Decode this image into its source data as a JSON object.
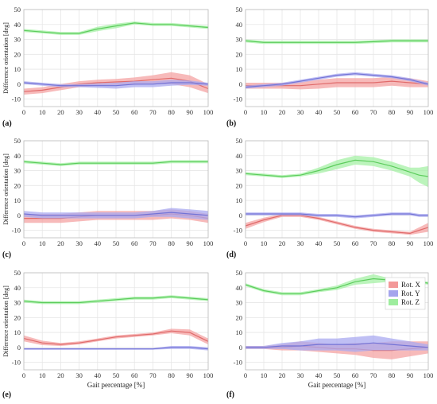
{
  "figure": {
    "legend": [
      {
        "label": "Rot. X",
        "color": "#f08080"
      },
      {
        "label": "Rot. Y",
        "color": "#8f8fe8"
      },
      {
        "label": "Rot. Z",
        "color": "#86e886"
      }
    ],
    "colors": {
      "line_x": "#e06a6a",
      "line_y": "#7373d6",
      "line_z": "#5ccc5c",
      "band_x": "#f4a3a3",
      "band_y": "#a9a9f0",
      "band_z": "#a6f0a6"
    }
  },
  "chart_data": [
    {
      "label": "(a)",
      "type": "line",
      "legend": false,
      "ylabel": "Difference orientation [deg]",
      "xlabel": "",
      "xlim": [
        0,
        100
      ],
      "ylim": [
        -15,
        50
      ],
      "xticks": [
        0,
        10,
        20,
        30,
        40,
        50,
        60,
        70,
        80,
        90,
        100
      ],
      "yticks": [
        -10,
        0,
        10,
        20,
        30,
        40,
        50
      ],
      "grid": true,
      "x": [
        0,
        10,
        20,
        30,
        40,
        50,
        60,
        70,
        80,
        90,
        100
      ],
      "series": [
        {
          "name": "Rot. X",
          "mean": [
            -5,
            -4,
            -2,
            0,
            1,
            1.5,
            2,
            3,
            4,
            2,
            -3
          ],
          "sd": [
            2,
            2,
            2,
            2,
            2,
            2,
            2.5,
            3,
            4,
            4,
            3
          ]
        },
        {
          "name": "Rot. Y",
          "mean": [
            1,
            0,
            -1,
            -1,
            -1,
            -1,
            0,
            0,
            1,
            1,
            0
          ],
          "sd": [
            1,
            1,
            1,
            1,
            1.5,
            2,
            2,
            2,
            2,
            1.5,
            1
          ]
        },
        {
          "name": "Rot. Z",
          "mean": [
            36,
            35,
            34,
            34,
            37,
            39,
            41,
            40,
            40,
            39,
            38
          ],
          "sd": [
            1,
            1,
            1,
            1,
            1.5,
            1.5,
            1,
            1,
            1,
            1,
            1
          ]
        }
      ]
    },
    {
      "label": "(b)",
      "type": "line",
      "legend": false,
      "ylabel": "",
      "xlabel": "",
      "xlim": [
        0,
        100
      ],
      "ylim": [
        -15,
        50
      ],
      "xticks": [
        0,
        10,
        20,
        30,
        40,
        50,
        60,
        70,
        80,
        90,
        100
      ],
      "yticks": [
        -10,
        0,
        10,
        20,
        30,
        40,
        50
      ],
      "grid": true,
      "x": [
        0,
        10,
        20,
        30,
        40,
        50,
        60,
        70,
        80,
        90,
        100
      ],
      "series": [
        {
          "name": "Rot. X",
          "mean": [
            -1,
            -1,
            -1,
            -1,
            0,
            1,
            1,
            1,
            2,
            1,
            0
          ],
          "sd": [
            2,
            2,
            2,
            2.5,
            3,
            3,
            3,
            3,
            3,
            3,
            2
          ]
        },
        {
          "name": "Rot. Y",
          "mean": [
            -2,
            -1,
            0,
            2,
            4,
            6,
            7,
            6,
            5,
            3,
            0
          ],
          "sd": [
            1,
            1,
            1,
            1,
            1,
            1,
            1,
            1,
            1,
            1,
            1
          ]
        },
        {
          "name": "Rot. Z",
          "mean": [
            29,
            28,
            28,
            28,
            28,
            28,
            28,
            28.5,
            29,
            29,
            29
          ],
          "sd": [
            1,
            1,
            1,
            1,
            1,
            1,
            1,
            1,
            1,
            1,
            1
          ]
        }
      ]
    },
    {
      "label": "(c)",
      "type": "line",
      "legend": false,
      "ylabel": "Difference orientation [deg]",
      "xlabel": "",
      "xlim": [
        0,
        100
      ],
      "ylim": [
        -15,
        50
      ],
      "xticks": [
        0,
        10,
        20,
        30,
        40,
        50,
        60,
        70,
        80,
        90,
        100
      ],
      "yticks": [
        -10,
        0,
        10,
        20,
        30,
        40,
        50
      ],
      "grid": true,
      "x": [
        0,
        10,
        20,
        30,
        40,
        50,
        60,
        70,
        80,
        90,
        100
      ],
      "series": [
        {
          "name": "Rot. X",
          "mean": [
            -2,
            -2,
            -2,
            -1,
            0,
            0,
            0,
            0,
            1,
            0,
            -2
          ],
          "sd": [
            3,
            3,
            3,
            3,
            3,
            3,
            3,
            3,
            3,
            3,
            3
          ]
        },
        {
          "name": "Rot. Y",
          "mean": [
            1,
            0,
            0,
            0,
            0,
            0,
            0,
            1,
            2,
            1,
            0
          ],
          "sd": [
            2,
            2,
            2,
            2,
            2,
            2,
            2,
            2,
            3,
            3,
            3
          ]
        },
        {
          "name": "Rot. Z",
          "mean": [
            36,
            35,
            34,
            35,
            35,
            35,
            35,
            35,
            36,
            36,
            36
          ],
          "sd": [
            1,
            1,
            1,
            1,
            1,
            1,
            1,
            1,
            1,
            1,
            1
          ]
        }
      ]
    },
    {
      "label": "(d)",
      "type": "line",
      "legend": false,
      "ylabel": "",
      "xlabel": "",
      "xlim": [
        0,
        100
      ],
      "ylim": [
        -15,
        50
      ],
      "xticks": [
        0,
        10,
        20,
        30,
        40,
        50,
        60,
        70,
        80,
        90,
        100
      ],
      "yticks": [
        -10,
        0,
        10,
        20,
        30,
        40,
        50
      ],
      "grid": true,
      "x": [
        0,
        10,
        20,
        30,
        40,
        50,
        60,
        70,
        80,
        90,
        95,
        100
      ],
      "series": [
        {
          "name": "Rot. X",
          "mean": [
            -7,
            -3,
            0,
            0,
            -2,
            -5,
            -8,
            -10,
            -11,
            -12,
            -10,
            -8
          ],
          "sd": [
            2,
            1.5,
            1,
            1,
            1,
            1,
            1,
            1,
            1,
            1,
            2,
            3
          ]
        },
        {
          "name": "Rot. Y",
          "mean": [
            1,
            1,
            1,
            1,
            0,
            0,
            -1,
            0,
            1,
            1,
            0,
            0
          ],
          "sd": [
            1,
            1,
            1,
            1,
            1,
            1,
            1,
            1,
            1,
            1,
            1,
            1
          ]
        },
        {
          "name": "Rot. Z",
          "mean": [
            28,
            27,
            26,
            27,
            30,
            34,
            37,
            36,
            33,
            29,
            27,
            26
          ],
          "sd": [
            1,
            1,
            1,
            1,
            2,
            3,
            3,
            3,
            3,
            3,
            5,
            7
          ]
        }
      ]
    },
    {
      "label": "(e)",
      "type": "line",
      "legend": false,
      "ylabel": "Difference orientation [deg]",
      "xlabel": "Gait percentage [%]",
      "xlim": [
        0,
        100
      ],
      "ylim": [
        -15,
        50
      ],
      "xticks": [
        0,
        10,
        20,
        30,
        40,
        50,
        60,
        70,
        80,
        90,
        100
      ],
      "yticks": [
        -10,
        0,
        10,
        20,
        30,
        40,
        50
      ],
      "grid": true,
      "x": [
        0,
        10,
        20,
        30,
        40,
        50,
        60,
        70,
        80,
        90,
        100
      ],
      "series": [
        {
          "name": "Rot. X",
          "mean": [
            6,
            3,
            2,
            3,
            5,
            7,
            8,
            9,
            11,
            10,
            4
          ],
          "sd": [
            2,
            1.5,
            1,
            1,
            1,
            1,
            1,
            1,
            1.5,
            2,
            2
          ]
        },
        {
          "name": "Rot. Y",
          "mean": [
            -1,
            -1,
            -1,
            -1,
            -1,
            -1,
            -1,
            -1,
            0,
            0,
            -1
          ],
          "sd": [
            0.5,
            0.5,
            0.5,
            0.5,
            0.5,
            0.5,
            0.5,
            0.5,
            1,
            1,
            1
          ]
        },
        {
          "name": "Rot. Z",
          "mean": [
            31,
            30,
            30,
            30,
            31,
            32,
            33,
            33,
            34,
            33,
            32
          ],
          "sd": [
            1,
            1,
            1,
            1,
            1,
            1,
            1,
            1,
            1,
            1,
            1
          ]
        }
      ]
    },
    {
      "label": "(f)",
      "type": "line",
      "legend": true,
      "legend_position": "right",
      "ylabel": "",
      "xlabel": "Gait percentage [%]",
      "xlim": [
        0,
        100
      ],
      "ylim": [
        -15,
        50
      ],
      "xticks": [
        0,
        10,
        20,
        30,
        40,
        50,
        60,
        70,
        80,
        90,
        100
      ],
      "yticks": [
        -10,
        0,
        10,
        20,
        30,
        40,
        50
      ],
      "grid": true,
      "x": [
        0,
        10,
        20,
        30,
        40,
        50,
        60,
        70,
        80,
        90,
        100
      ],
      "series": [
        {
          "name": "Rot. X",
          "mean": [
            0,
            0,
            0,
            1,
            0,
            -1,
            -1,
            -2,
            -2,
            -1,
            0
          ],
          "sd": [
            1,
            1,
            2,
            3,
            3,
            3,
            4,
            5,
            6,
            5,
            4
          ]
        },
        {
          "name": "Rot. Y",
          "mean": [
            0,
            0,
            1,
            1,
            2,
            2,
            2,
            3,
            2,
            1,
            0
          ],
          "sd": [
            1,
            1,
            2,
            3,
            4,
            4,
            5,
            5,
            4,
            3,
            2
          ]
        },
        {
          "name": "Rot. Z",
          "mean": [
            42,
            38,
            36,
            36,
            38,
            40,
            44,
            46,
            45,
            45,
            43
          ],
          "sd": [
            1,
            1,
            1,
            1,
            1,
            1.5,
            2,
            3,
            1,
            1,
            1
          ]
        }
      ]
    }
  ]
}
